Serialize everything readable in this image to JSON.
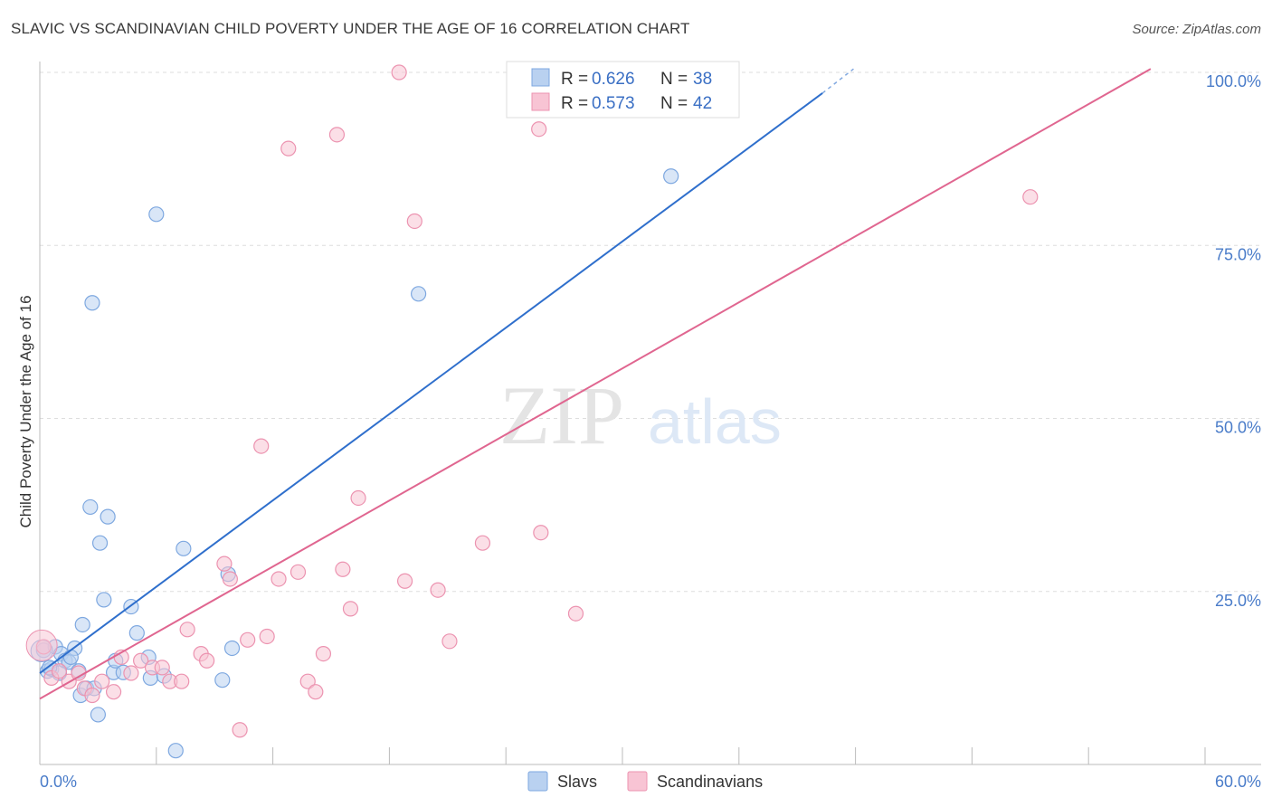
{
  "header": {
    "title": "SLAVIC VS SCANDINAVIAN CHILD POVERTY UNDER THE AGE OF 16 CORRELATION CHART",
    "source": "Source: ZipAtlas.com"
  },
  "watermark": {
    "zip": "ZIP",
    "atlas": "atlas"
  },
  "legend_top": [
    {
      "r_label": "R = ",
      "r_value": "0.626",
      "n_label": "N = ",
      "n_value": "38"
    },
    {
      "r_label": "R = ",
      "r_value": "0.573",
      "n_label": "N = ",
      "n_value": "42"
    }
  ],
  "legend_bottom": [
    "Slavs",
    "Scandinavians"
  ],
  "colors": {
    "slavs_fill": "#b9d1f0",
    "slavs_stroke": "#7ea8e0",
    "slavs_line": "#2f6fcc",
    "scand_fill": "#f8c4d4",
    "scand_stroke": "#ec93b0",
    "scand_line": "#e06690",
    "grid": "#dddddd",
    "axis_text": "#4a7cc9"
  },
  "chart_data": {
    "type": "scatter",
    "title": "SLAVIC VS SCANDINAVIAN CHILD POVERTY UNDER THE AGE OF 16 CORRELATION CHART",
    "xlabel": "",
    "ylabel": "Child Poverty Under the Age of 16",
    "xlim": [
      0,
      60
    ],
    "ylim": [
      0,
      100
    ],
    "x_tick_labels": [
      "0.0%",
      "60.0%"
    ],
    "y_ticks": [
      25,
      50,
      75,
      100
    ],
    "y_tick_labels": [
      "25.0%",
      "50.0%",
      "75.0%",
      "100.0%"
    ],
    "grid": true,
    "legend_position": "top-center",
    "series": [
      {
        "name": "Slavs",
        "r": 0.626,
        "n": 38,
        "trend": {
          "x": [
            0,
            40.3
          ],
          "y": [
            13.2,
            97.0
          ]
        },
        "trend_dashed": {
          "x": [
            40.3,
            41.9
          ],
          "y": [
            97.0,
            100.5
          ]
        },
        "points": [
          [
            0.2,
            16.5
          ],
          [
            0.4,
            13.5
          ],
          [
            0.6,
            13.8
          ],
          [
            0.8,
            17.0
          ],
          [
            1.0,
            13.2
          ],
          [
            1.1,
            16.0
          ],
          [
            1.3,
            15.0
          ],
          [
            1.5,
            14.8
          ],
          [
            1.8,
            16.8
          ],
          [
            2.0,
            13.5
          ],
          [
            2.1,
            10.0
          ],
          [
            2.2,
            20.2
          ],
          [
            2.4,
            11.0
          ],
          [
            2.6,
            37.2
          ],
          [
            2.8,
            11.0
          ],
          [
            3.0,
            7.2
          ],
          [
            3.1,
            32.0
          ],
          [
            3.3,
            23.8
          ],
          [
            3.5,
            35.8
          ],
          [
            3.8,
            13.3
          ],
          [
            3.9,
            15.0
          ],
          [
            4.3,
            13.3
          ],
          [
            4.7,
            22.8
          ],
          [
            5.0,
            19.0
          ],
          [
            5.6,
            15.5
          ],
          [
            5.7,
            12.5
          ],
          [
            6.0,
            79.5
          ],
          [
            6.4,
            12.8
          ],
          [
            7.0,
            2.0
          ],
          [
            7.4,
            31.2
          ],
          [
            9.4,
            12.2
          ],
          [
            9.7,
            27.5
          ],
          [
            9.9,
            16.8
          ],
          [
            19.5,
            68.0
          ],
          [
            32.5,
            85.0
          ],
          [
            2.7,
            66.7
          ],
          [
            0.5,
            14.0
          ],
          [
            1.6,
            15.5
          ]
        ]
      },
      {
        "name": "Scandinavians",
        "r": 0.573,
        "n": 42,
        "trend": {
          "x": [
            0,
            57.2
          ],
          "y": [
            9.5,
            100.5
          ]
        },
        "points": [
          [
            0.2,
            17.0
          ],
          [
            0.6,
            12.5
          ],
          [
            1.0,
            13.5
          ],
          [
            1.5,
            12.0
          ],
          [
            2.0,
            13.2
          ],
          [
            2.3,
            11.0
          ],
          [
            2.7,
            10.0
          ],
          [
            3.2,
            12.0
          ],
          [
            3.8,
            10.5
          ],
          [
            4.2,
            15.5
          ],
          [
            4.7,
            13.2
          ],
          [
            5.2,
            15.0
          ],
          [
            5.8,
            14.0
          ],
          [
            6.3,
            14.0
          ],
          [
            6.7,
            12.0
          ],
          [
            7.3,
            12.0
          ],
          [
            7.6,
            19.5
          ],
          [
            8.3,
            16.0
          ],
          [
            8.6,
            15.0
          ],
          [
            9.5,
            29.0
          ],
          [
            9.8,
            26.8
          ],
          [
            10.3,
            5.0
          ],
          [
            10.7,
            18.0
          ],
          [
            11.4,
            46.0
          ],
          [
            11.7,
            18.5
          ],
          [
            12.3,
            26.8
          ],
          [
            13.3,
            27.8
          ],
          [
            13.8,
            12.0
          ],
          [
            14.2,
            10.5
          ],
          [
            14.6,
            16.0
          ],
          [
            15.6,
            28.2
          ],
          [
            16.0,
            22.5
          ],
          [
            16.4,
            38.5
          ],
          [
            18.5,
            100.0
          ],
          [
            18.8,
            26.5
          ],
          [
            19.3,
            78.5
          ],
          [
            20.5,
            25.2
          ],
          [
            21.1,
            17.8
          ],
          [
            22.8,
            32.0
          ],
          [
            25.8,
            33.5
          ],
          [
            27.6,
            21.8
          ],
          [
            51.0,
            82.0
          ]
        ],
        "extra_points": [
          [
            12.8,
            89.0
          ],
          [
            15.3,
            91.0
          ],
          [
            25.7,
            91.8
          ]
        ]
      }
    ]
  }
}
